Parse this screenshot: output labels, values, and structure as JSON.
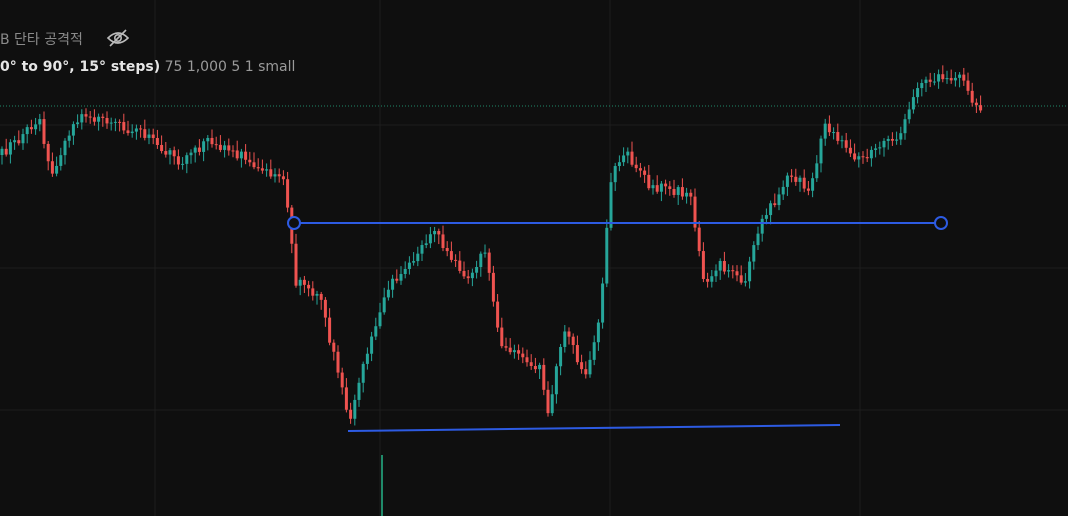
{
  "header": {
    "indicator_name": "B 단타 공격적",
    "settings_bold": "0° to 90°, 15° steps)",
    "settings_values": "75 1,000 5 1 small"
  }
}
